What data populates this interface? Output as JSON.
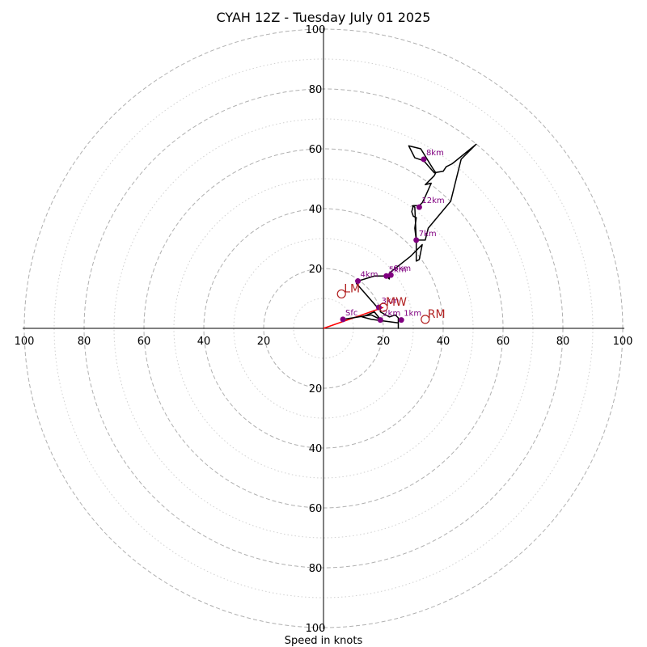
{
  "chart_data": {
    "type": "hodograph",
    "title": "CYAH 12Z - Tuesday July 01 2025",
    "xlabel": "Speed in knots",
    "units": "knots",
    "ring_range": [
      0,
      100
    ],
    "major_rings": [
      20,
      40,
      60,
      80,
      100
    ],
    "minor_rings": [
      10,
      30,
      50,
      70,
      90
    ],
    "tick_labels": [
      "20",
      "40",
      "60",
      "80",
      "100"
    ],
    "grid": true,
    "colors": {
      "trace": "#000000",
      "height_marker": "#800080",
      "storm_motion": "#b22222",
      "mean_wind_line": "#ff0000",
      "major_ring": "#b0b0b0",
      "minor_ring": "#d0d0d0"
    },
    "hodograph_trace": [
      {
        "u": 6.5,
        "v": 3.0
      },
      {
        "u": 16,
        "v": 4.5
      },
      {
        "u": 19,
        "v": 3.0
      },
      {
        "u": 17,
        "v": 5.5
      },
      {
        "u": 13,
        "v": 3.8
      },
      {
        "u": 16,
        "v": 3.0
      },
      {
        "u": 25,
        "v": 1.8
      },
      {
        "u": 25,
        "v": 0
      },
      {
        "u": 25,
        "v": 3.5
      },
      {
        "u": 24,
        "v": 4.5
      },
      {
        "u": 22,
        "v": 3.8
      },
      {
        "u": 19,
        "v": 5.5
      },
      {
        "u": 19,
        "v": 7.0
      },
      {
        "u": 18,
        "v": 7.0
      },
      {
        "u": 11,
        "v": 15.0
      },
      {
        "u": 11.5,
        "v": 15.8
      },
      {
        "u": 17,
        "v": 17.5
      },
      {
        "u": 21,
        "v": 17.5
      },
      {
        "u": 22,
        "v": 16.5
      },
      {
        "u": 22,
        "v": 18.5
      },
      {
        "u": 29,
        "v": 24.0
      },
      {
        "u": 31,
        "v": 26.0
      },
      {
        "u": 33,
        "v": 28.0
      },
      {
        "u": 32,
        "v": 23.0
      },
      {
        "u": 31,
        "v": 22.5
      },
      {
        "u": 31,
        "v": 29.5
      },
      {
        "u": 30.5,
        "v": 33.5
      },
      {
        "u": 31,
        "v": 37.0
      },
      {
        "u": 30,
        "v": 37.5
      },
      {
        "u": 29.5,
        "v": 39.0
      },
      {
        "u": 30,
        "v": 41.0
      },
      {
        "u": 32,
        "v": 41.0
      },
      {
        "u": 33,
        "v": 42.0
      },
      {
        "u": 34,
        "v": 44.0
      },
      {
        "u": 36,
        "v": 48.5
      },
      {
        "u": 34,
        "v": 48.0
      },
      {
        "u": 37,
        "v": 51.0
      },
      {
        "u": 37.5,
        "v": 52.0
      },
      {
        "u": 36.5,
        "v": 53.5
      },
      {
        "u": 32.5,
        "v": 60.0
      },
      {
        "u": 28.5,
        "v": 61.0
      },
      {
        "u": 30.5,
        "v": 57.0
      },
      {
        "u": 33.5,
        "v": 56.0
      },
      {
        "u": 37,
        "v": 52.0
      },
      {
        "u": 40,
        "v": 52.5
      },
      {
        "u": 41,
        "v": 54.0
      },
      {
        "u": 43,
        "v": 55.0
      },
      {
        "u": 51,
        "v": 61.5
      },
      {
        "u": 46,
        "v": 56.5
      },
      {
        "u": 42.5,
        "v": 42.5
      },
      {
        "u": 35,
        "v": 33.5
      },
      {
        "u": 34,
        "v": 29.5
      },
      {
        "u": 31,
        "v": 29.5
      },
      {
        "u": 30.5,
        "v": 40.5
      },
      {
        "u": 29.5,
        "v": 41.0
      }
    ],
    "height_markers": [
      {
        "label": "Sfc",
        "u": 6.5,
        "v": 3.0
      },
      {
        "label": "1km",
        "u": 26,
        "v": 2.8
      },
      {
        "label": "2km",
        "u": 19,
        "v": 2.8
      },
      {
        "label": "3km",
        "u": 18.5,
        "v": 7.0
      },
      {
        "label": "4km",
        "u": 11.5,
        "v": 15.8
      },
      {
        "label": "5km",
        "u": 21,
        "v": 17.5
      },
      {
        "label": "6km",
        "u": 22.5,
        "v": 17.8
      },
      {
        "label": "7km",
        "u": 31,
        "v": 29.5
      },
      {
        "label": "8km",
        "u": 33.5,
        "v": 56.5
      },
      {
        "label": "12km",
        "u": 32,
        "v": 40.5
      }
    ],
    "storm_motion": [
      {
        "label": "LM",
        "u": 6,
        "v": 11.5
      },
      {
        "label": "MW",
        "u": 20,
        "v": 7.0
      },
      {
        "label": "RM",
        "u": 34,
        "v": 3.0
      }
    ],
    "mean_wind_vector": {
      "from": [
        0,
        0
      ],
      "to": [
        20,
        7.0
      ]
    }
  }
}
